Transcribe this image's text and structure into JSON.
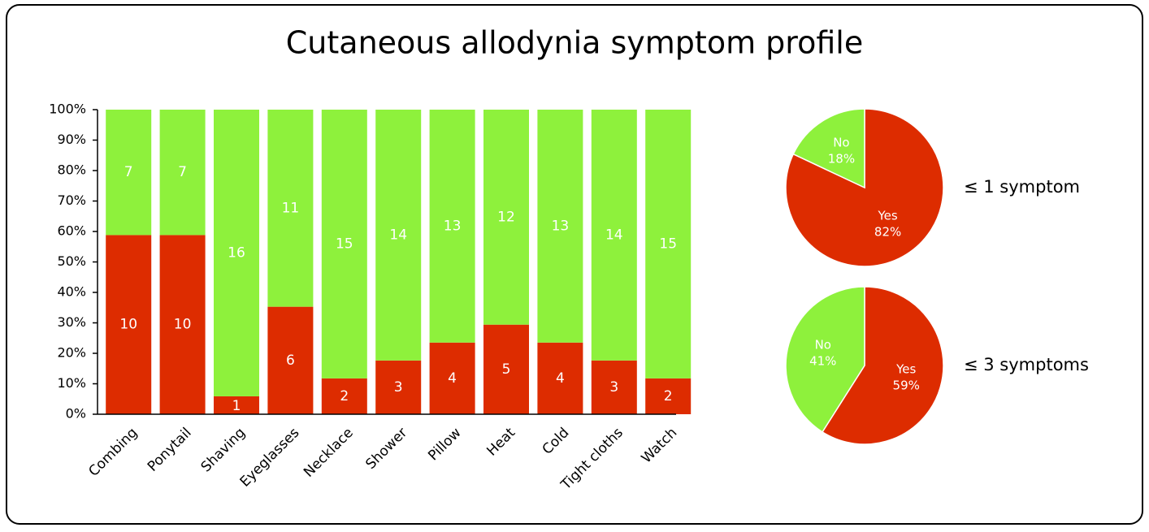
{
  "chart_data": [
    {
      "type": "bar",
      "title": "Cutaneous allodynia symptom profile",
      "stacking": "percent",
      "categories": [
        "Combing",
        "Ponytail",
        "Shaving",
        "Eyeglasses",
        "Necklace",
        "Shower",
        "Pillow",
        "Heat",
        "Cold",
        "Tight cloths",
        "Watch"
      ],
      "series": [
        {
          "color": "#dd2c00",
          "values": [
            10,
            10,
            1,
            6,
            2,
            3,
            4,
            5,
            4,
            3,
            2
          ]
        },
        {
          "color": "#8ef13c",
          "values": [
            7,
            7,
            16,
            11,
            15,
            14,
            13,
            12,
            13,
            14,
            15
          ]
        }
      ],
      "ylim": [
        0,
        100
      ],
      "yticks": [
        {
          "value": 0,
          "label": "0%"
        },
        {
          "value": 10,
          "label": "10%"
        },
        {
          "value": 20,
          "label": "20%"
        },
        {
          "value": 30,
          "label": "30%"
        },
        {
          "value": 40,
          "label": "40%"
        },
        {
          "value": 50,
          "label": "50%"
        },
        {
          "value": 60,
          "label": "60%"
        },
        {
          "value": 70,
          "label": "70%"
        },
        {
          "value": 80,
          "label": "80%"
        },
        {
          "value": 90,
          "label": "90%"
        },
        {
          "value": 100,
          "label": "100%"
        }
      ]
    },
    {
      "type": "pie",
      "title": "≤ 1 symptom",
      "categories": [
        "Yes",
        "No"
      ],
      "values": [
        82,
        18
      ],
      "value_labels": [
        "82%",
        "18%"
      ],
      "colors": [
        "#dd2c00",
        "#8ef13c"
      ]
    },
    {
      "type": "pie",
      "title": "≤ 3 symptoms",
      "categories": [
        "Yes",
        "No"
      ],
      "values": [
        59,
        41
      ],
      "value_labels": [
        "59%",
        "41%"
      ],
      "colors": [
        "#dd2c00",
        "#8ef13c"
      ]
    }
  ]
}
